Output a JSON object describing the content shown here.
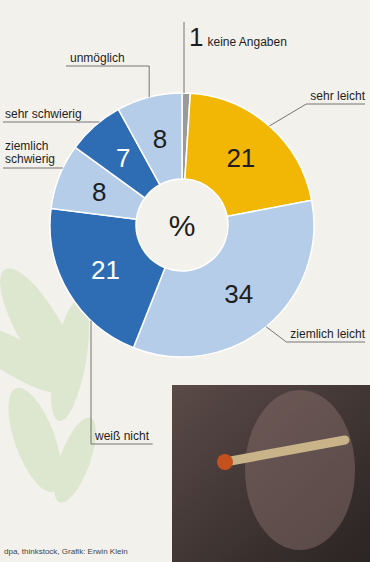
{
  "chart_data": {
    "type": "donut",
    "categories": [
      "keine Angaben",
      "sehr leicht",
      "ziemlich leicht",
      "weiß nicht",
      "ziemlich schwierig",
      "sehr schwierig",
      "unmöglich"
    ],
    "values": [
      1,
      21,
      34,
      21,
      8,
      7,
      8
    ],
    "colors": [
      "#9a9a9a",
      "#f2b604",
      "#b5cde8",
      "#2e6db4",
      "#b5cde8",
      "#2e6db4",
      "#b5cde8"
    ],
    "data_labels": true,
    "center_label": "%",
    "source": "dpa, thinkstock, Grafik: Erwin Klein"
  }
}
